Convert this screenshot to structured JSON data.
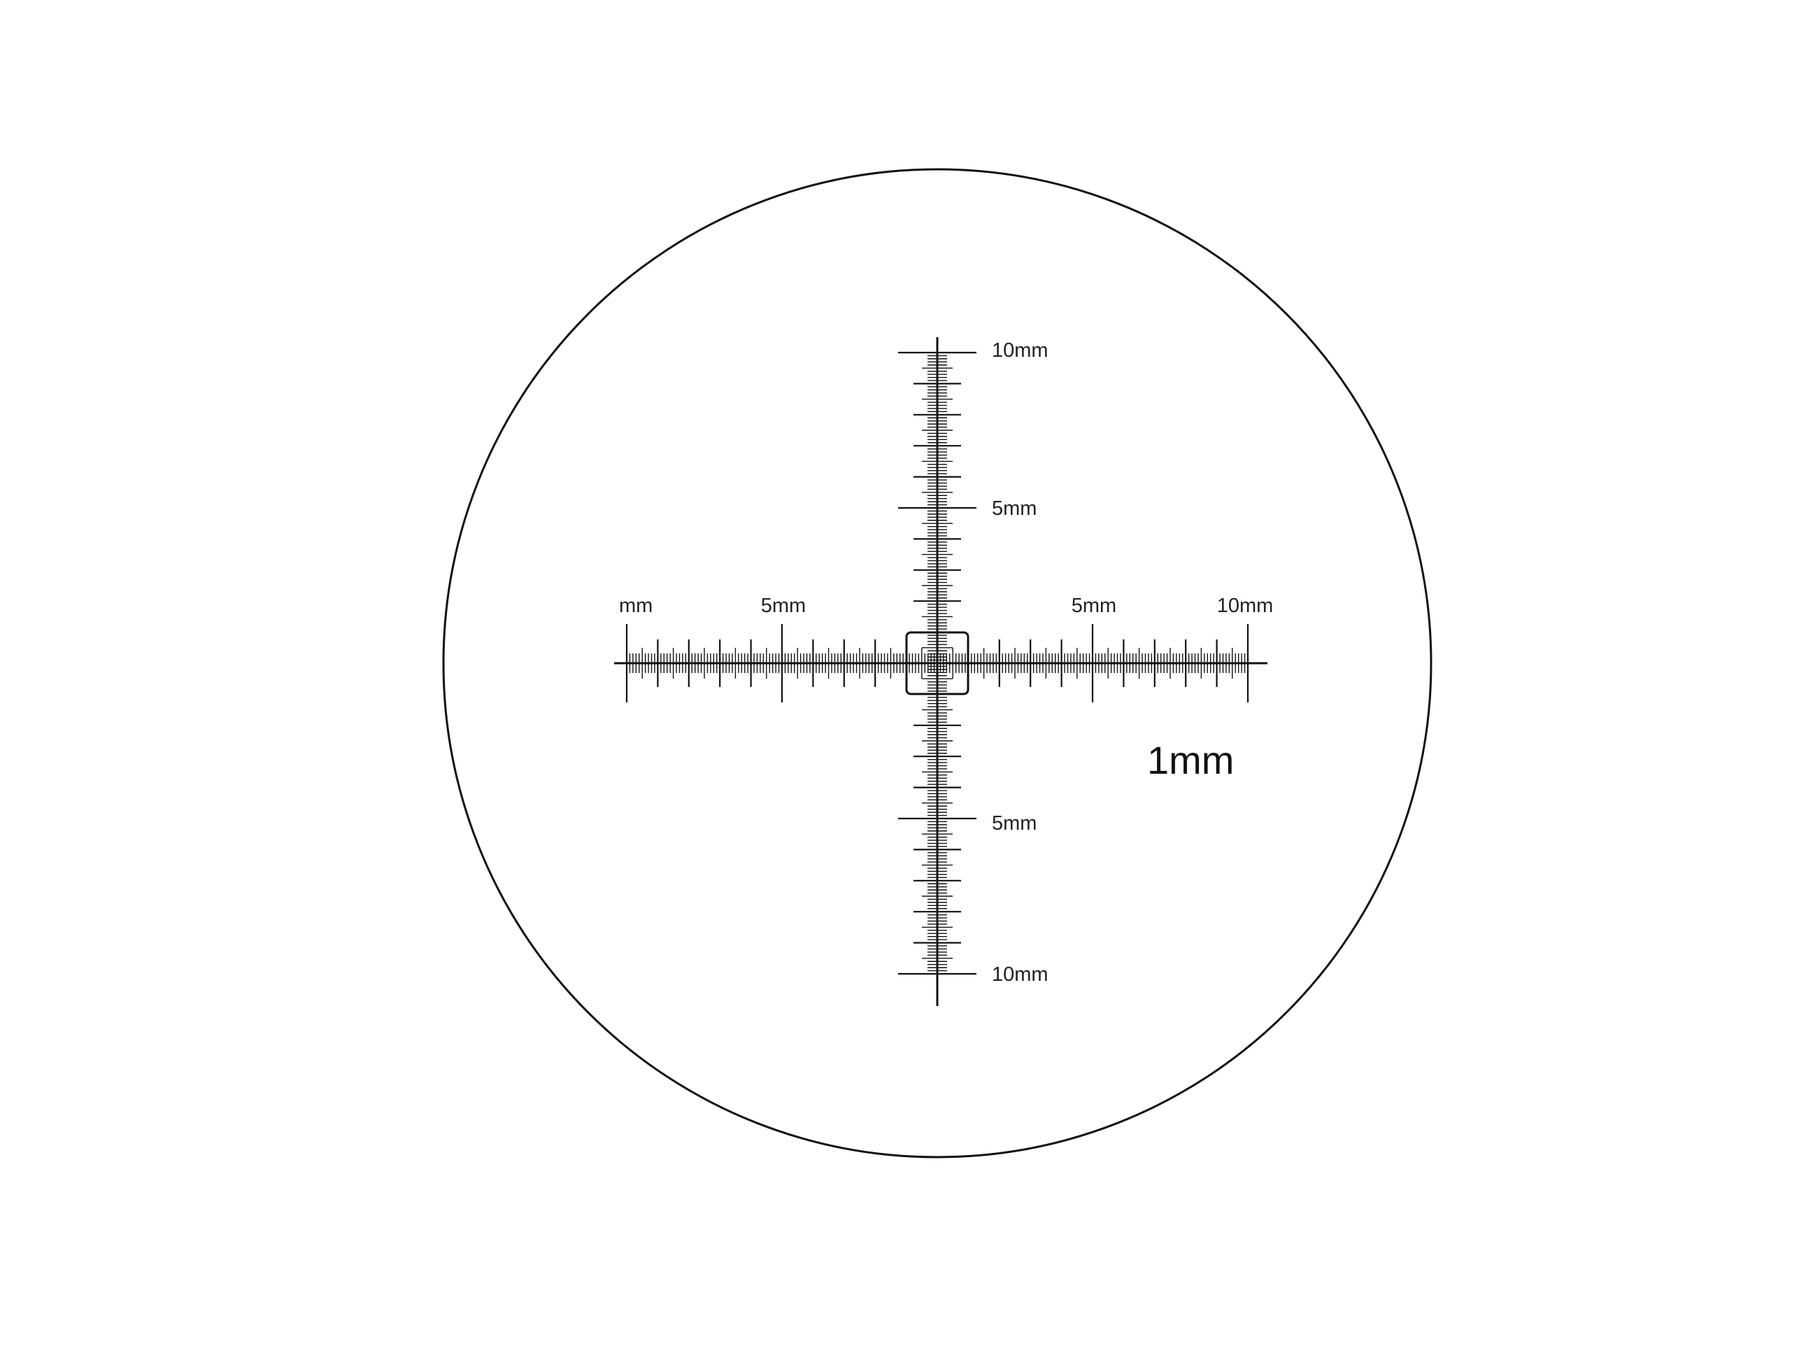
{
  "colors": {
    "background": "#ffffff",
    "ink": "#111111"
  },
  "reticle": {
    "horizontal_range_mm": [
      -10,
      10
    ],
    "vertical_range_mm": [
      -10,
      10
    ],
    "division_mm": 0.1,
    "labels": {
      "h_left_10": "mm",
      "h_left_5": "5mm",
      "h_right_5": "5mm",
      "h_right_10": "10mm",
      "v_top_10": "10mm",
      "v_top_5": "5mm",
      "v_bottom_5": "5mm",
      "v_bottom_10": "10mm",
      "division_note": "1mm"
    }
  }
}
